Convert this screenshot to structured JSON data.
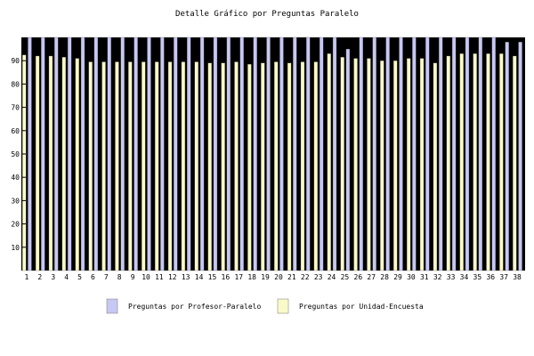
{
  "chart_data": {
    "type": "bar",
    "title": "Detalle Gráfico por Preguntas Paralelo",
    "xlabel": "",
    "ylabel": "",
    "ylim": [
      0,
      100
    ],
    "yticks": [
      10,
      20,
      30,
      40,
      50,
      60,
      70,
      80,
      90
    ],
    "grid": false,
    "legend_position": "bottom",
    "plot_background": "#000000",
    "categories": [
      "1",
      "2",
      "3",
      "4",
      "5",
      "6",
      "7",
      "8",
      "9",
      "10",
      "11",
      "12",
      "13",
      "14",
      "15",
      "16",
      "17",
      "18",
      "19",
      "20",
      "21",
      "22",
      "23",
      "24",
      "25",
      "26",
      "27",
      "28",
      "29",
      "30",
      "31",
      "32",
      "33",
      "34",
      "35",
      "36",
      "37",
      "38"
    ],
    "series": [
      {
        "name": "Preguntas por Profesor-Paralelo",
        "color": "#c8c8f4",
        "values": [
          100,
          100,
          100,
          100,
          100,
          100,
          100,
          100,
          100,
          100,
          100,
          100,
          100,
          100,
          100,
          100,
          100,
          100,
          100,
          100,
          100,
          100,
          100,
          100,
          95,
          100,
          100,
          100,
          100,
          100,
          100,
          100,
          100,
          100,
          100,
          100,
          98,
          98
        ]
      },
      {
        "name": "Preguntas por Unidad-Encuesta",
        "color": "#fafac8",
        "values": [
          92.5,
          92,
          92,
          91.5,
          91,
          89.5,
          89.5,
          89.5,
          89.5,
          89.5,
          89.5,
          89.5,
          89.5,
          89.5,
          89,
          89,
          89.5,
          88.5,
          89,
          89.5,
          89,
          89.5,
          89.5,
          93,
          91.5,
          91,
          91,
          90,
          90,
          91,
          91,
          89,
          92,
          93,
          93,
          93,
          93,
          92
        ]
      }
    ]
  }
}
